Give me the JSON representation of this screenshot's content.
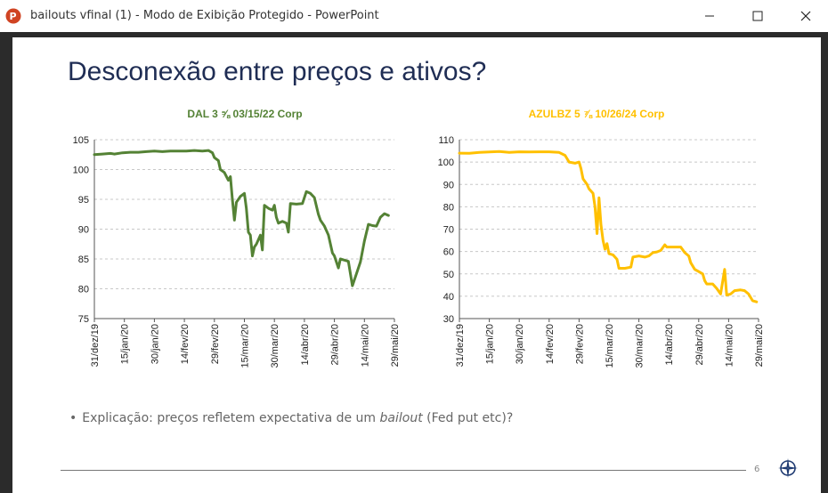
{
  "window": {
    "title": "bailouts vfinal  (1)  -  Modo de Exibição Protegido  -  PowerPoint",
    "app_icon": "powerpoint-icon",
    "controls": [
      "minimize",
      "maximize",
      "close"
    ]
  },
  "slide": {
    "title": "Desconexão entre preços e ativos?",
    "bullet": {
      "prefix": "Explicação: preços refletem expectativa de um ",
      "italic": "bailout",
      "suffix": " (Fed put etc)?"
    },
    "page_number": "6",
    "logo_icon": "compass-icon"
  },
  "chart_data": [
    {
      "type": "line",
      "title": "DAL 3 ⅝ 03/15/22 Corp",
      "color": "#548235",
      "title_color": "#548235",
      "ylim": [
        75,
        105
      ],
      "yticks": [
        75,
        80,
        85,
        90,
        95,
        100,
        105
      ],
      "xlim": [
        0,
        150
      ],
      "xticks": [
        {
          "x": 0,
          "label": "31/dez/19"
        },
        {
          "x": 15,
          "label": "15/jan/20"
        },
        {
          "x": 30,
          "label": "30/jan/20"
        },
        {
          "x": 45,
          "label": "14/fev/20"
        },
        {
          "x": 60,
          "label": "29/fev/20"
        },
        {
          "x": 75,
          "label": "15/mar/20"
        },
        {
          "x": 90,
          "label": "30/mar/20"
        },
        {
          "x": 105,
          "label": "14/abr/20"
        },
        {
          "x": 120,
          "label": "29/abr/20"
        },
        {
          "x": 135,
          "label": "14/mai/20"
        },
        {
          "x": 150,
          "label": "29/mai/20"
        }
      ],
      "grid": true,
      "points": [
        [
          0,
          102.5
        ],
        [
          4,
          102.6
        ],
        [
          8,
          102.7
        ],
        [
          10,
          102.6
        ],
        [
          14,
          102.8
        ],
        [
          18,
          102.9
        ],
        [
          22,
          102.9
        ],
        [
          26,
          103.0
        ],
        [
          30,
          103.1
        ],
        [
          34,
          103.0
        ],
        [
          38,
          103.1
        ],
        [
          42,
          103.1
        ],
        [
          46,
          103.1
        ],
        [
          50,
          103.2
        ],
        [
          54,
          103.1
        ],
        [
          57,
          103.2
        ],
        [
          59,
          102.8
        ],
        [
          60,
          102.0
        ],
        [
          62,
          101.5
        ],
        [
          63,
          100.0
        ],
        [
          65,
          99.5
        ],
        [
          67,
          98.2
        ],
        [
          68,
          98.8
        ],
        [
          69,
          95.0
        ],
        [
          70,
          91.5
        ],
        [
          71,
          94.5
        ],
        [
          73,
          95.5
        ],
        [
          75,
          96.0
        ],
        [
          76,
          93.5
        ],
        [
          77,
          89.5
        ],
        [
          78,
          89.0
        ],
        [
          79,
          85.5
        ],
        [
          80,
          87.0
        ],
        [
          81,
          87.5
        ],
        [
          83,
          89.0
        ],
        [
          84,
          86.5
        ],
        [
          85,
          94.0
        ],
        [
          87,
          93.5
        ],
        [
          89,
          93.2
        ],
        [
          90,
          94.0
        ],
        [
          91,
          92.0
        ],
        [
          92,
          91.0
        ],
        [
          94,
          91.3
        ],
        [
          96,
          91.0
        ],
        [
          97,
          89.5
        ],
        [
          98,
          94.3
        ],
        [
          101,
          94.2
        ],
        [
          104,
          94.3
        ],
        [
          106,
          96.3
        ],
        [
          108,
          96.0
        ],
        [
          110,
          95.3
        ],
        [
          112,
          92.5
        ],
        [
          113,
          91.5
        ],
        [
          115,
          90.5
        ],
        [
          117,
          89.0
        ],
        [
          119,
          86.0
        ],
        [
          120,
          85.5
        ],
        [
          122,
          83.5
        ],
        [
          123,
          85.0
        ],
        [
          125,
          84.8
        ],
        [
          127,
          84.6
        ],
        [
          129,
          80.5
        ],
        [
          131,
          82.5
        ],
        [
          133,
          84.5
        ],
        [
          135,
          88.0
        ],
        [
          137,
          90.8
        ],
        [
          139,
          90.6
        ],
        [
          141,
          90.5
        ],
        [
          143,
          92.0
        ],
        [
          145,
          92.6
        ],
        [
          147,
          92.3
        ]
      ]
    },
    {
      "type": "line",
      "title": "AZULBZ 5 ⅞ 10/26/24 Corp",
      "color": "#ffc000",
      "title_color": "#ffc000",
      "ylim": [
        30,
        110
      ],
      "yticks": [
        30,
        40,
        50,
        60,
        70,
        80,
        90,
        100,
        110
      ],
      "xlim": [
        0,
        150
      ],
      "xticks": [
        {
          "x": 0,
          "label": "31/dez/19"
        },
        {
          "x": 15,
          "label": "15/jan/20"
        },
        {
          "x": 30,
          "label": "30/jan/20"
        },
        {
          "x": 45,
          "label": "14/fev/20"
        },
        {
          "x": 60,
          "label": "29/fev/20"
        },
        {
          "x": 75,
          "label": "15/mar/20"
        },
        {
          "x": 90,
          "label": "30/mar/20"
        },
        {
          "x": 105,
          "label": "14/abr/20"
        },
        {
          "x": 120,
          "label": "29/abr/20"
        },
        {
          "x": 135,
          "label": "14/mai/20"
        },
        {
          "x": 150,
          "label": "29/mai/20"
        }
      ],
      "grid": true,
      "points": [
        [
          0,
          104.0
        ],
        [
          5,
          103.9
        ],
        [
          10,
          104.3
        ],
        [
          15,
          104.5
        ],
        [
          20,
          104.7
        ],
        [
          25,
          104.3
        ],
        [
          30,
          104.6
        ],
        [
          35,
          104.5
        ],
        [
          40,
          104.6
        ],
        [
          45,
          104.6
        ],
        [
          50,
          104.3
        ],
        [
          53,
          103.0
        ],
        [
          55,
          100.0
        ],
        [
          58,
          99.5
        ],
        [
          60,
          100.0
        ],
        [
          61,
          97.0
        ],
        [
          62,
          92.5
        ],
        [
          64,
          90.0
        ],
        [
          65,
          88.0
        ],
        [
          67,
          86.0
        ],
        [
          68,
          80.0
        ],
        [
          69,
          68.0
        ],
        [
          70,
          84.0
        ],
        [
          71,
          72.0
        ],
        [
          72,
          65.0
        ],
        [
          73,
          61.0
        ],
        [
          74,
          63.5
        ],
        [
          75,
          59.0
        ],
        [
          77,
          58.5
        ],
        [
          79,
          56.5
        ],
        [
          80,
          52.5
        ],
        [
          83,
          52.5
        ],
        [
          86,
          53.0
        ],
        [
          87,
          57.5
        ],
        [
          90,
          58.0
        ],
        [
          93,
          57.5
        ],
        [
          95,
          58.0
        ],
        [
          97,
          59.5
        ],
        [
          99,
          59.8
        ],
        [
          101,
          60.5
        ],
        [
          103,
          63.0
        ],
        [
          104,
          62.0
        ],
        [
          108,
          62.0
        ],
        [
          111,
          62.0
        ],
        [
          113,
          59.5
        ],
        [
          115,
          58.0
        ],
        [
          116,
          55.0
        ],
        [
          118,
          52.0
        ],
        [
          120,
          51.0
        ],
        [
          122,
          50.0
        ],
        [
          123,
          47.0
        ],
        [
          124,
          45.5
        ],
        [
          127,
          45.5
        ],
        [
          129,
          43.5
        ],
        [
          131,
          41.0
        ],
        [
          133,
          52.0
        ],
        [
          134,
          40.5
        ],
        [
          136,
          41.0
        ],
        [
          138,
          42.5
        ],
        [
          141,
          42.8
        ],
        [
          143,
          42.5
        ],
        [
          145,
          41.0
        ],
        [
          147,
          38.0
        ],
        [
          149,
          37.5
        ]
      ]
    }
  ]
}
